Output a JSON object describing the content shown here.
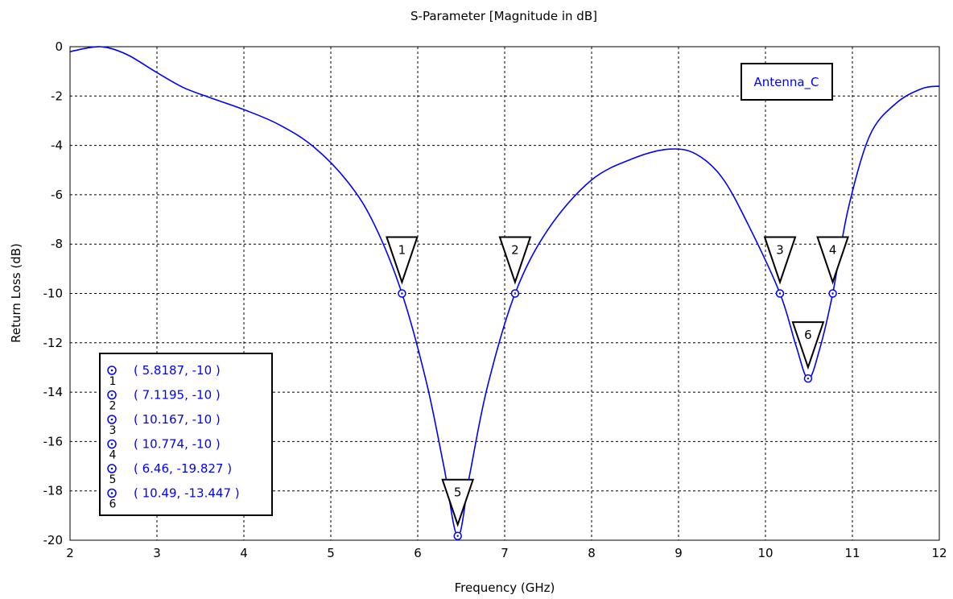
{
  "chart_data": {
    "type": "line",
    "title": "S-Parameter [Magnitude in dB]",
    "xlabel": "Frequency (GHz)",
    "ylabel": "Return Loss (dB)",
    "xlim": [
      2,
      12
    ],
    "ylim": [
      -20,
      0
    ],
    "xticks": [
      2,
      3,
      4,
      5,
      6,
      7,
      8,
      9,
      10,
      11,
      12
    ],
    "yticks": [
      0,
      -2,
      -4,
      -6,
      -8,
      -10,
      -12,
      -14,
      -16,
      -18,
      -20
    ],
    "grid": true,
    "legend": "top-right",
    "series": [
      {
        "name": "Antenna_C",
        "color": "#0000ff",
        "x": [
          2.0,
          2.2,
          2.35,
          2.5,
          2.7,
          3.0,
          3.3,
          3.6,
          4.0,
          4.4,
          4.8,
          5.2,
          5.5,
          5.8187,
          6.1,
          6.3,
          6.46,
          6.6,
          6.8,
          7.1195,
          7.5,
          8.0,
          8.5,
          8.9,
          9.2,
          9.5,
          9.8,
          10.167,
          10.35,
          10.49,
          10.62,
          10.774,
          10.95,
          11.2,
          11.5,
          11.8,
          12.0
        ],
        "y": [
          -0.2,
          -0.05,
          0.0,
          -0.1,
          -0.4,
          -1.05,
          -1.65,
          -2.05,
          -2.55,
          -3.15,
          -4.05,
          -5.5,
          -7.2,
          -10.0,
          -13.6,
          -17.0,
          -19.827,
          -17.3,
          -13.8,
          -10.0,
          -7.4,
          -5.4,
          -4.5,
          -4.15,
          -4.35,
          -5.3,
          -7.2,
          -10.0,
          -12.1,
          -13.447,
          -12.3,
          -10.0,
          -6.6,
          -3.6,
          -2.3,
          -1.7,
          -1.6
        ]
      }
    ],
    "markers": [
      {
        "id": "1",
        "x": 5.8187,
        "y": -10,
        "label": "( 5.8187, -10 )"
      },
      {
        "id": "2",
        "x": 7.1195,
        "y": -10,
        "label": "( 7.1195, -10 )"
      },
      {
        "id": "3",
        "x": 10.167,
        "y": -10,
        "label": "( 10.167, -10 )"
      },
      {
        "id": "4",
        "x": 10.774,
        "y": -10,
        "label": "( 10.774, -10 )"
      },
      {
        "id": "5",
        "x": 6.46,
        "y": -19.827,
        "label": "( 6.46, -19.827 )"
      },
      {
        "id": "6",
        "x": 10.49,
        "y": -13.447,
        "label": "( 10.49, -13.447 )"
      }
    ]
  }
}
